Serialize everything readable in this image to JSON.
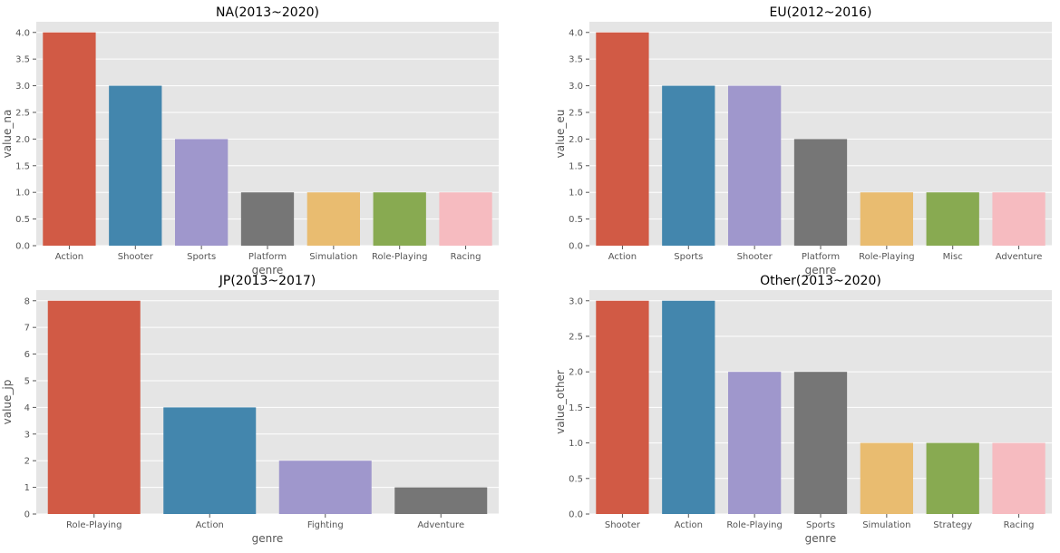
{
  "chart_data": [
    {
      "type": "bar",
      "title": "NA(2013~2020)",
      "xlabel": "genre",
      "ylabel": "value_na",
      "categories": [
        "Action",
        "Shooter",
        "Sports",
        "Platform",
        "Simulation",
        "Role-Playing",
        "Racing"
      ],
      "values": [
        4,
        3,
        2,
        1,
        1,
        1,
        1
      ],
      "ylim": [
        0,
        4.2
      ],
      "yticks": [
        0.0,
        0.5,
        1.0,
        1.5,
        2.0,
        2.5,
        3.0,
        3.5,
        4.0
      ],
      "ytick_labels": [
        "0.0",
        "0.5",
        "1.0",
        "1.5",
        "2.0",
        "2.5",
        "3.0",
        "3.5",
        "4.0"
      ],
      "grid": true
    },
    {
      "type": "bar",
      "title": "EU(2012~2016)",
      "xlabel": "genre",
      "ylabel": "value_eu",
      "categories": [
        "Action",
        "Sports",
        "Shooter",
        "Platform",
        "Role-Playing",
        "Misc",
        "Adventure"
      ],
      "values": [
        4,
        3,
        3,
        2,
        1,
        1,
        1
      ],
      "ylim": [
        0,
        4.2
      ],
      "yticks": [
        0.0,
        0.5,
        1.0,
        1.5,
        2.0,
        2.5,
        3.0,
        3.5,
        4.0
      ],
      "ytick_labels": [
        "0.0",
        "0.5",
        "1.0",
        "1.5",
        "2.0",
        "2.5",
        "3.0",
        "3.5",
        "4.0"
      ],
      "grid": true
    },
    {
      "type": "bar",
      "title": "JP(2013~2017)",
      "xlabel": "genre",
      "ylabel": "value_jp",
      "categories": [
        "Role-Playing",
        "Action",
        "Fighting",
        "Adventure"
      ],
      "values": [
        8,
        4,
        2,
        1
      ],
      "ylim": [
        0,
        8.4
      ],
      "yticks": [
        0,
        1,
        2,
        3,
        4,
        5,
        6,
        7,
        8
      ],
      "ytick_labels": [
        "0",
        "1",
        "2",
        "3",
        "4",
        "5",
        "6",
        "7",
        "8"
      ],
      "grid": true
    },
    {
      "type": "bar",
      "title": "Other(2013~2020)",
      "xlabel": "genre",
      "ylabel": "value_other",
      "categories": [
        "Shooter",
        "Action",
        "Role-Playing",
        "Sports",
        "Simulation",
        "Strategy",
        "Racing"
      ],
      "values": [
        3,
        3,
        2,
        2,
        1,
        1,
        1
      ],
      "ylim": [
        0,
        3.15
      ],
      "yticks": [
        0.0,
        0.5,
        1.0,
        1.5,
        2.0,
        2.5,
        3.0
      ],
      "ytick_labels": [
        "0.0",
        "0.5",
        "1.0",
        "1.5",
        "2.0",
        "2.5",
        "3.0"
      ],
      "grid": true
    }
  ],
  "colors": {
    "palette": [
      "#d15a45",
      "#4386ad",
      "#9f97cc",
      "#767676",
      "#e9bc70",
      "#88aa51",
      "#f6bbc0"
    ],
    "plot_background": "#e5e5e5",
    "grid": "#ffffff",
    "text": "#555555",
    "title_text": "#000000"
  }
}
